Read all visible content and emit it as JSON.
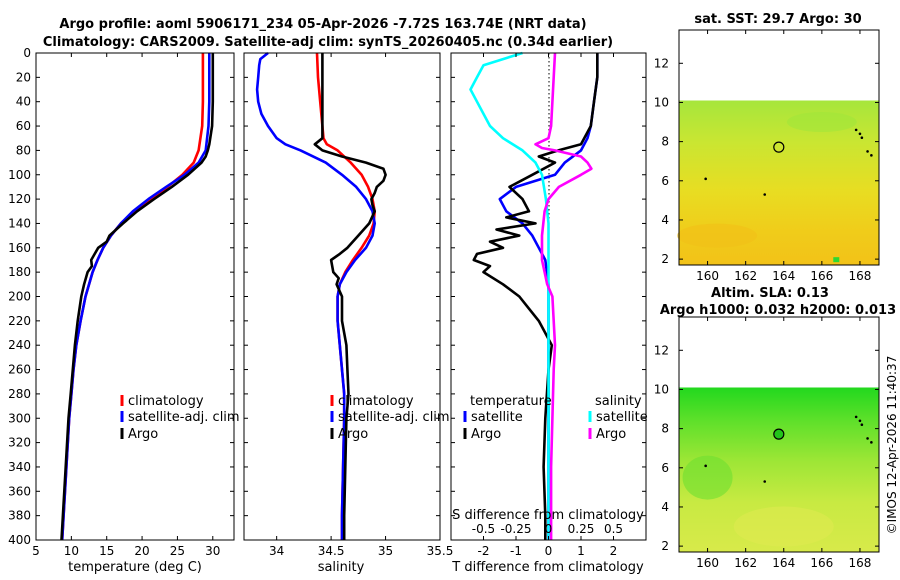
{
  "header": {
    "line1": "Argo profile: aoml 5906171_234 05-Apr-2026 -7.72S 163.74E (NRT data)",
    "line2": "Climatology: CARS2009. Satellite-adj clim: synTS_20260405.nc (0.34d earlier)"
  },
  "credit": "©IMOS 12-Apr-2026 11:40:37",
  "colors": {
    "clim": "#ff0000",
    "sat": "#0000ff",
    "argo": "#000000",
    "sal_sat": "#00ffff",
    "sal_argo": "#ff00ff"
  },
  "chart_data": [
    {
      "type": "line",
      "name": "temperature",
      "xlabel": "temperature (deg C)",
      "ylabel": "",
      "xlim": [
        5,
        33
      ],
      "ylim": [
        400,
        0
      ],
      "xticks": [
        5,
        10,
        15,
        20,
        25,
        30
      ],
      "yticks": [
        0,
        20,
        40,
        60,
        80,
        100,
        120,
        140,
        160,
        180,
        200,
        220,
        240,
        260,
        280,
        300,
        320,
        340,
        360,
        380,
        400
      ],
      "legend": [
        "climatology",
        "satellite-adj. clim",
        "Argo"
      ],
      "series": [
        {
          "name": "climatology",
          "color": "#ff0000",
          "depth": [
            0,
            20,
            40,
            60,
            80,
            90,
            100,
            110,
            120,
            130,
            140,
            150,
            160,
            170,
            180,
            200,
            220,
            240,
            260,
            280,
            300,
            340,
            380,
            400
          ],
          "values": [
            28.6,
            28.6,
            28.6,
            28.5,
            28.0,
            27.3,
            25.7,
            23.6,
            21.3,
            19.0,
            17.0,
            15.6,
            14.5,
            13.7,
            13.0,
            12.0,
            11.3,
            10.7,
            10.3,
            10.0,
            9.7,
            9.3,
            8.9,
            8.7
          ]
        },
        {
          "name": "satellite-adj. clim",
          "color": "#0000ff",
          "depth": [
            0,
            20,
            40,
            60,
            80,
            90,
            100,
            110,
            120,
            130,
            140,
            150,
            160,
            170,
            180,
            200,
            220,
            240,
            260,
            280,
            300,
            340,
            380,
            400
          ],
          "values": [
            29.5,
            29.5,
            29.5,
            29.4,
            29.0,
            28.0,
            26.0,
            23.4,
            20.9,
            18.7,
            17.0,
            15.6,
            14.5,
            13.7,
            13.0,
            12.0,
            11.3,
            10.7,
            10.3,
            10.0,
            9.7,
            9.3,
            8.9,
            8.7
          ]
        },
        {
          "name": "Argo",
          "color": "#000000",
          "depth": [
            0,
            20,
            40,
            60,
            75,
            80,
            85,
            90,
            100,
            110,
            120,
            130,
            140,
            150,
            155,
            160,
            165,
            170,
            175,
            180,
            190,
            200,
            220,
            240,
            260,
            280,
            300,
            340,
            380,
            400
          ],
          "values": [
            30.0,
            30.0,
            30.0,
            29.9,
            29.5,
            29.3,
            29.0,
            28.4,
            26.5,
            24.2,
            21.7,
            19.3,
            17.3,
            15.4,
            15.0,
            13.8,
            13.3,
            12.8,
            12.9,
            12.3,
            11.8,
            11.4,
            10.9,
            10.5,
            10.2,
            9.9,
            9.6,
            9.2,
            8.8,
            8.6
          ]
        }
      ]
    },
    {
      "type": "line",
      "name": "salinity",
      "xlabel": "salinity",
      "xlim": [
        33.7,
        35.5
      ],
      "ylim": [
        400,
        0
      ],
      "xticks": [
        34,
        34.5,
        35,
        35.5
      ],
      "legend": [
        "climatology",
        "satellite-adj. clim",
        "Argo"
      ],
      "series": [
        {
          "name": "climatology",
          "color": "#ff0000",
          "depth": [
            0,
            20,
            40,
            60,
            70,
            75,
            80,
            90,
            100,
            110,
            120,
            130,
            140,
            150,
            160,
            170,
            180,
            190,
            200,
            220,
            240,
            260,
            280,
            300,
            340,
            380,
            400
          ],
          "values": [
            34.37,
            34.38,
            34.4,
            34.42,
            34.43,
            34.46,
            34.56,
            34.68,
            34.78,
            34.84,
            34.88,
            34.9,
            34.89,
            34.85,
            34.78,
            34.7,
            34.63,
            34.58,
            34.56,
            34.56,
            34.58,
            34.6,
            34.62,
            34.62,
            34.61,
            34.6,
            34.6
          ]
        },
        {
          "name": "satellite-adj. clim",
          "color": "#0000ff",
          "depth": [
            0,
            5,
            10,
            20,
            30,
            40,
            50,
            60,
            70,
            75,
            80,
            90,
            100,
            110,
            120,
            130,
            140,
            150,
            160,
            170,
            180,
            190,
            200,
            220,
            240,
            260,
            280,
            300,
            340,
            380,
            400
          ],
          "values": [
            33.92,
            33.85,
            33.84,
            33.83,
            33.82,
            33.83,
            33.86,
            33.92,
            34.0,
            34.08,
            34.22,
            34.45,
            34.6,
            34.73,
            34.82,
            34.88,
            34.9,
            34.88,
            34.82,
            34.72,
            34.64,
            34.58,
            34.56,
            34.56,
            34.58,
            34.6,
            34.62,
            34.62,
            34.61,
            34.6,
            34.6
          ]
        },
        {
          "name": "Argo",
          "color": "#000000",
          "depth": [
            0,
            20,
            40,
            60,
            70,
            75,
            80,
            85,
            90,
            95,
            100,
            105,
            110,
            115,
            120,
            125,
            130,
            140,
            150,
            160,
            165,
            170,
            175,
            180,
            185,
            190,
            200,
            210,
            220,
            230,
            240,
            260,
            280,
            300,
            340,
            380,
            400
          ],
          "values": [
            34.42,
            34.42,
            34.42,
            34.42,
            34.42,
            34.35,
            34.42,
            34.6,
            34.82,
            34.98,
            35.0,
            34.98,
            34.92,
            34.9,
            34.87,
            34.88,
            34.9,
            34.85,
            34.75,
            34.65,
            34.58,
            34.5,
            34.51,
            34.52,
            34.57,
            34.55,
            34.6,
            34.6,
            34.6,
            34.62,
            34.64,
            34.65,
            34.66,
            34.64,
            34.63,
            34.62,
            34.62
          ]
        }
      ]
    },
    {
      "type": "line",
      "name": "difference",
      "xlabel": "T difference from climatology",
      "top_xlabel": "S difference from climatology",
      "xlim": [
        -3,
        3
      ],
      "ylim": [
        400,
        0
      ],
      "xticks": [
        -2,
        -1,
        0,
        1,
        2
      ],
      "top_xticks": [
        "-0.5",
        "-0.25",
        "0",
        "0.25",
        "0.5"
      ],
      "legend_temperature": {
        "title": "temperature",
        "items": [
          "satellite",
          "Argo"
        ]
      },
      "legend_salinity": {
        "title": "salinity",
        "items": [
          "satellite",
          "Argo"
        ]
      },
      "series": [
        {
          "name": "temperature satellite",
          "color": "#0000ff",
          "depth": [
            0,
            20,
            40,
            60,
            70,
            80,
            90,
            100,
            110,
            120,
            130,
            140,
            150,
            160,
            170,
            180,
            190,
            200,
            220,
            240,
            260,
            280,
            300,
            340,
            380,
            400
          ],
          "values": [
            1.5,
            1.5,
            1.4,
            1.3,
            1.2,
            1.0,
            0.5,
            0.2,
            -1.0,
            -1.5,
            -1.3,
            -0.8,
            -0.5,
            -0.3,
            -0.1,
            -0.05,
            0.0,
            0.0,
            0.0,
            0.0,
            0.0,
            0.0,
            0.0,
            0.0,
            0.0,
            0.0
          ]
        },
        {
          "name": "temperature Argo",
          "color": "#000000",
          "depth": [
            0,
            20,
            40,
            60,
            75,
            80,
            85,
            90,
            100,
            110,
            120,
            130,
            135,
            140,
            145,
            150,
            155,
            160,
            165,
            170,
            175,
            180,
            190,
            200,
            210,
            220,
            230,
            240,
            260,
            280,
            300,
            340,
            380,
            400
          ],
          "values": [
            1.5,
            1.5,
            1.4,
            1.3,
            1.0,
            0.3,
            -0.3,
            0.2,
            -0.5,
            -1.2,
            -0.8,
            -0.6,
            -1.3,
            -0.4,
            -1.6,
            -0.9,
            -1.8,
            -1.4,
            -2.2,
            -2.3,
            -1.8,
            -2.0,
            -1.4,
            -0.9,
            -0.6,
            -0.3,
            -0.1,
            0.1,
            0.0,
            -0.05,
            -0.1,
            -0.15,
            -0.1,
            -0.1
          ]
        },
        {
          "name": "salinity satellite",
          "color": "#00ffff",
          "depth": [
            0,
            10,
            20,
            30,
            40,
            50,
            60,
            70,
            80,
            90,
            100,
            120,
            140,
            160,
            180,
            200,
            220,
            240,
            260,
            280,
            300,
            340,
            380,
            400
          ],
          "values": [
            -0.2,
            -0.5,
            -0.55,
            -0.6,
            -0.55,
            -0.5,
            -0.45,
            -0.35,
            -0.2,
            -0.1,
            -0.05,
            -0.02,
            0.0,
            0.0,
            0.0,
            0.0,
            0.0,
            0.0,
            0.0,
            0.0,
            0.0,
            0.0,
            0.0,
            0.0
          ]
        },
        {
          "name": "salinity Argo",
          "color": "#ff00ff",
          "depth": [
            0,
            20,
            40,
            60,
            70,
            75,
            78,
            80,
            85,
            90,
            95,
            100,
            110,
            120,
            130,
            140,
            150,
            160,
            170,
            180,
            190,
            200,
            220,
            240,
            260,
            300,
            340,
            380,
            400
          ],
          "values": [
            0.05,
            0.04,
            0.03,
            0.02,
            0.0,
            -0.1,
            -0.05,
            0.05,
            0.25,
            0.3,
            0.33,
            0.25,
            0.08,
            0.0,
            -0.03,
            -0.04,
            -0.05,
            -0.05,
            -0.05,
            -0.03,
            -0.01,
            0.03,
            0.04,
            0.05,
            0.04,
            0.03,
            0.02,
            0.02,
            0.02
          ]
        }
      ]
    },
    {
      "type": "heatmap",
      "name": "sst-map",
      "title": "sat. SST: 29.7 Argo: 30",
      "xlim": [
        158.5,
        169
      ],
      "ylim": [
        1.7,
        13.7
      ],
      "xticks": [
        160,
        162,
        164,
        166,
        168
      ],
      "yticks": [
        2,
        4,
        6,
        8,
        10,
        12
      ],
      "data_ylim": [
        1.7,
        10.1
      ],
      "argo_position": [
        163.74,
        7.72
      ]
    },
    {
      "type": "heatmap",
      "name": "sla-map",
      "title": "Altim. SLA: 0.13",
      "subtitle": "Argo h1000: 0.032 h2000: 0.013",
      "xlim": [
        158.5,
        169
      ],
      "ylim": [
        1.7,
        13.7
      ],
      "xticks": [
        160,
        162,
        164,
        166,
        168
      ],
      "yticks": [
        2,
        4,
        6,
        8,
        10,
        12
      ],
      "data_ylim": [
        1.7,
        10.1
      ],
      "argo_position": [
        163.74,
        7.72
      ]
    }
  ]
}
